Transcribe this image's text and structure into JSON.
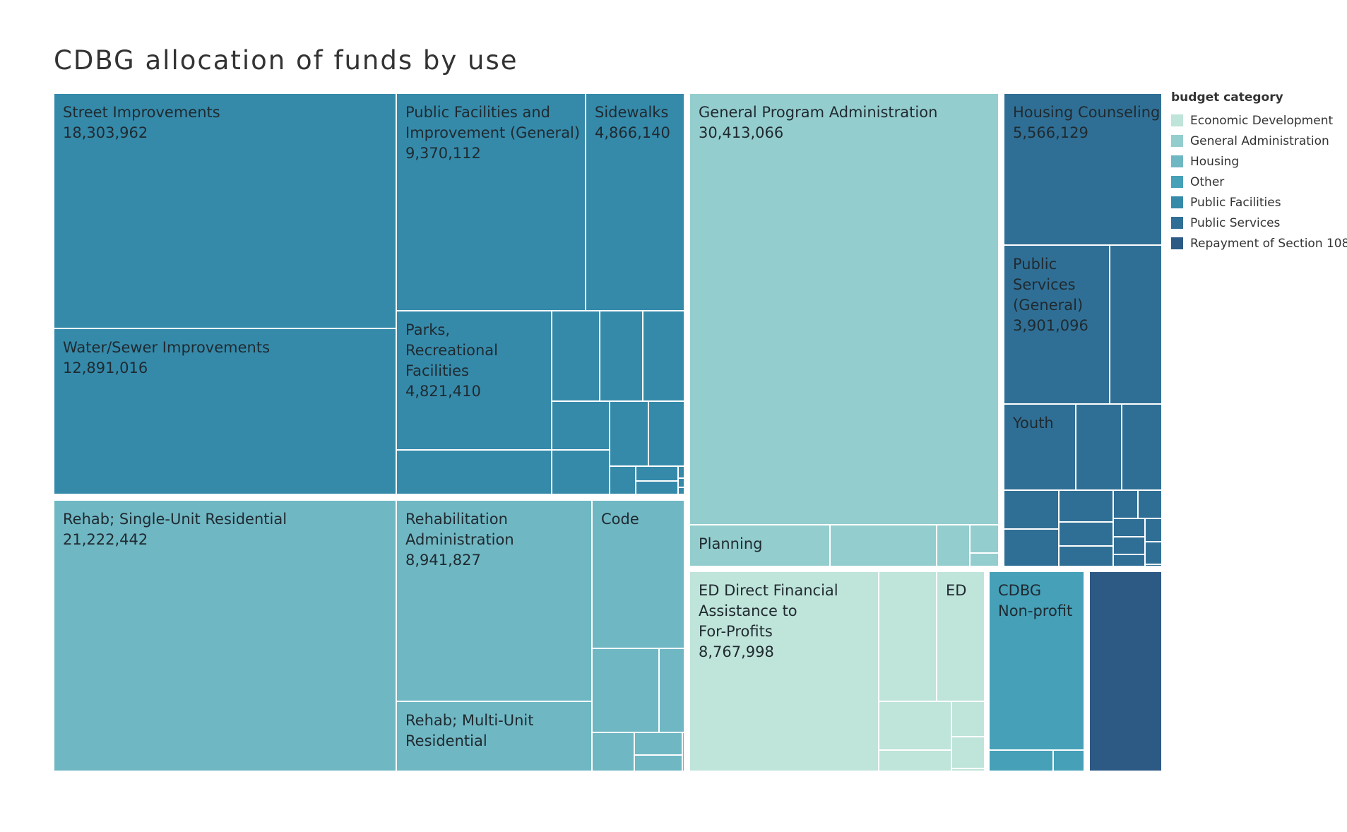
{
  "chart_data": {
    "type": "treemap",
    "title": "CDBG allocation of funds by use",
    "legend": {
      "title": "budget category",
      "placement": "right",
      "categories": [
        {
          "name": "Economic Development",
          "color": "#bfe4d9"
        },
        {
          "name": "General Administration",
          "color": "#94cdce"
        },
        {
          "name": "Housing",
          "color": "#6fb7c3"
        },
        {
          "name": "Other",
          "color": "#45a0b8"
        },
        {
          "name": "Public Facilities",
          "color": "#358aaa"
        },
        {
          "name": "Public Services",
          "color": "#306f95"
        },
        {
          "name": "Repayment of Section 108",
          "color": "#2d5985"
        }
      ]
    },
    "nodes": [
      {
        "label": "Street Improvements",
        "value_label": "18,303,962",
        "category": "Public Facilities"
      },
      {
        "label": "Water/Sewer Improvements",
        "value_label": "12,891,016",
        "category": "Public Facilities"
      },
      {
        "label": "Public Facilities and Improvement (General)",
        "value_label": "9,370,112",
        "category": "Public Facilities"
      },
      {
        "label": "Sidewalks",
        "value_label": "4,866,140",
        "category": "Public Facilities"
      },
      {
        "label": "Parks, Recreational Facilities",
        "value_label": "4,821,410",
        "category": "Public Facilities"
      },
      {
        "label": "Rehab; Single-Unit Residential",
        "value_label": "21,222,442",
        "category": "Housing"
      },
      {
        "label": "Rehabilitation Administration",
        "value_label": "8,941,827",
        "category": "Housing"
      },
      {
        "label": "Code",
        "value_label": "",
        "category": "Housing"
      },
      {
        "label": "Rehab; Multi-Unit Residential",
        "value_label": "",
        "category": "Housing"
      },
      {
        "label": "General Program Administration",
        "value_label": "30,413,066",
        "category": "General Administration"
      },
      {
        "label": "Planning",
        "value_label": "",
        "category": "General Administration"
      },
      {
        "label": "ED Direct Financial Assistance to For-Profits",
        "value_label": "8,767,998",
        "category": "Economic Development"
      },
      {
        "label": "ED",
        "value_label": "",
        "category": "Economic Development"
      },
      {
        "label": "Housing Counseling",
        "value_label": "5,566,129",
        "category": "Public Services"
      },
      {
        "label": "Public Services (General)",
        "value_label": "3,901,096",
        "category": "Public Services"
      },
      {
        "label": "Youth",
        "value_label": "",
        "category": "Public Services"
      },
      {
        "label": "CDBG Non-profit",
        "value_label": "",
        "category": "Other"
      },
      {
        "label": "",
        "value_label": "",
        "category": "Repayment of Section 108"
      }
    ]
  }
}
